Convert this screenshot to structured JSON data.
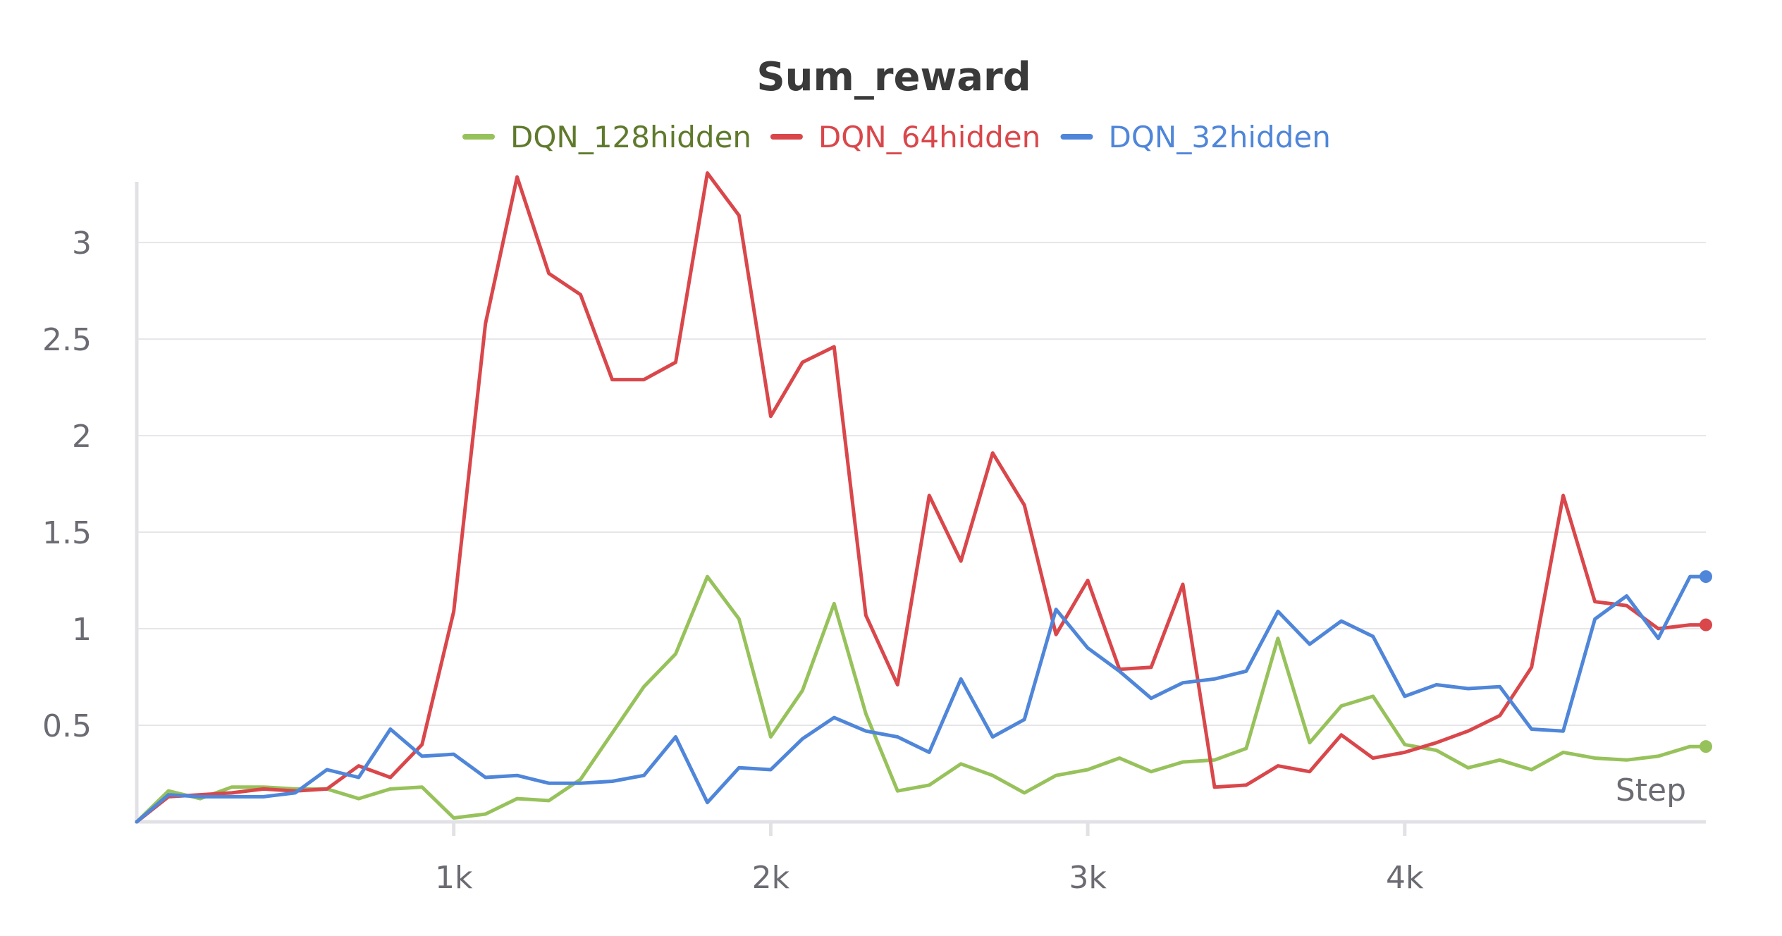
{
  "chart_data": {
    "type": "line",
    "title": "Sum_reward",
    "xlabel": "Step",
    "ylabel": "",
    "xlim": [
      0,
      4950
    ],
    "ylim": [
      0,
      3.38
    ],
    "x_ticks": [
      {
        "value": 1000,
        "label": "1k"
      },
      {
        "value": 2000,
        "label": "2k"
      },
      {
        "value": 3000,
        "label": "3k"
      },
      {
        "value": 4000,
        "label": "4k"
      }
    ],
    "y_ticks": [
      {
        "value": 0.5,
        "label": "0.5"
      },
      {
        "value": 1,
        "label": "1"
      },
      {
        "value": 1.5,
        "label": "1.5"
      },
      {
        "value": 2,
        "label": "2"
      },
      {
        "value": 2.5,
        "label": "2.5"
      },
      {
        "value": 3,
        "label": "3"
      }
    ],
    "grid": true,
    "legend_position": "top-center",
    "x": [
      0,
      100,
      200,
      300,
      400,
      500,
      600,
      700,
      800,
      900,
      1000,
      1100,
      1200,
      1300,
      1400,
      1500,
      1600,
      1700,
      1800,
      1900,
      2000,
      2100,
      2200,
      2300,
      2400,
      2500,
      2600,
      2700,
      2800,
      2900,
      3000,
      3100,
      3200,
      3300,
      3400,
      3500,
      3600,
      3700,
      3800,
      3900,
      4000,
      4100,
      4200,
      4300,
      4400,
      4500,
      4600,
      4700,
      4800,
      4900,
      4950
    ],
    "series": [
      {
        "name": "DQN_128hidden",
        "color": "#97c25b",
        "text_color": "#5f7a2c",
        "values": [
          0.0,
          0.16,
          0.12,
          0.18,
          0.18,
          0.17,
          0.17,
          0.12,
          0.17,
          0.18,
          0.02,
          0.04,
          0.12,
          0.11,
          0.22,
          0.46,
          0.7,
          0.87,
          1.27,
          1.05,
          0.44,
          0.68,
          1.13,
          0.56,
          0.16,
          0.19,
          0.3,
          0.24,
          0.15,
          0.24,
          0.27,
          0.33,
          0.26,
          0.31,
          0.32,
          0.38,
          0.95,
          0.41,
          0.6,
          0.65,
          0.4,
          0.37,
          0.28,
          0.32,
          0.27,
          0.36,
          0.33,
          0.32,
          0.34,
          0.39,
          0.39
        ]
      },
      {
        "name": "DQN_64hidden",
        "color": "#d9474b",
        "text_color": "#d9474b",
        "values": [
          0.0,
          0.13,
          0.14,
          0.15,
          0.17,
          0.16,
          0.17,
          0.29,
          0.23,
          0.4,
          1.09,
          2.58,
          3.34,
          2.84,
          2.73,
          2.29,
          2.29,
          2.38,
          3.36,
          3.14,
          2.1,
          2.38,
          2.46,
          1.07,
          0.71,
          1.69,
          1.35,
          1.91,
          1.64,
          0.97,
          1.25,
          0.79,
          0.8,
          1.23,
          0.18,
          0.19,
          0.29,
          0.26,
          0.45,
          0.33,
          0.36,
          0.41,
          0.47,
          0.55,
          0.8,
          1.69,
          1.14,
          1.12,
          1.0,
          1.02,
          1.02
        ]
      },
      {
        "name": "DQN_32hidden",
        "color": "#4f86d9",
        "text_color": "#4f86d9",
        "values": [
          0.0,
          0.14,
          0.13,
          0.13,
          0.13,
          0.15,
          0.27,
          0.23,
          0.48,
          0.34,
          0.35,
          0.23,
          0.24,
          0.2,
          0.2,
          0.21,
          0.24,
          0.44,
          0.1,
          0.28,
          0.27,
          0.43,
          0.54,
          0.47,
          0.44,
          0.36,
          0.74,
          0.44,
          0.53,
          1.1,
          0.9,
          0.78,
          0.64,
          0.72,
          0.74,
          0.78,
          1.09,
          0.92,
          1.04,
          0.96,
          0.65,
          0.71,
          0.69,
          0.7,
          0.48,
          0.47,
          1.05,
          1.17,
          0.95,
          1.27,
          1.27
        ]
      }
    ]
  }
}
